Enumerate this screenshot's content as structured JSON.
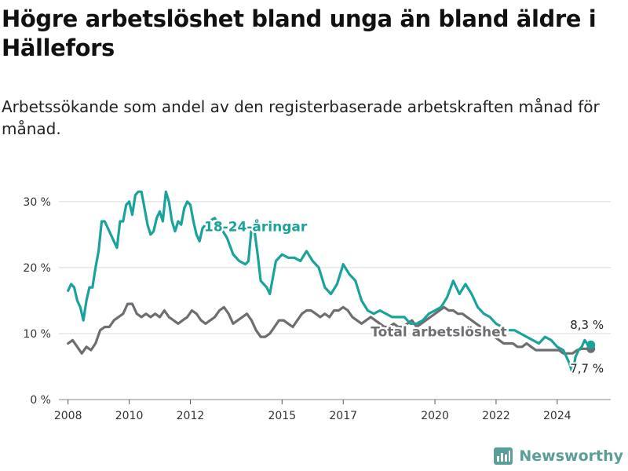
{
  "title": "Högre arbetslöshet bland unga än bland äldre i Hällefors",
  "subtitle": "Arbetssökande som andel av den registerbaserade arbetskraften månad för månad.",
  "brand": {
    "name": "Newsworthy",
    "color": "#5a9e98"
  },
  "chart_data": {
    "type": "line",
    "title": "Högre arbetslöshet bland unga än bland äldre i Hällefors",
    "subtitle": "Arbetssökande som andel av den registerbaserade arbetskraften månad för månad.",
    "xlabel": "",
    "ylabel": "",
    "xlim": [
      2007.7,
      2025.75
    ],
    "ylim": [
      0,
      32
    ],
    "x_ticks": [
      2008,
      2010,
      2012,
      2015,
      2017,
      2020,
      2022,
      2024
    ],
    "y_ticks": [
      0,
      10,
      20,
      30
    ],
    "y_tick_labels": [
      "0 %",
      "10 %",
      "20 %",
      "30 %"
    ],
    "grid": "horizontal",
    "legend": "inline labels",
    "series": [
      {
        "name": "18-24-åringar",
        "color": "#1aa39a",
        "x": [
          2008.0,
          2008.1,
          2008.2,
          2008.3,
          2008.4,
          2008.5,
          2008.6,
          2008.7,
          2008.8,
          2008.9,
          2009.0,
          2009.1,
          2009.2,
          2009.3,
          2009.4,
          2009.5,
          2009.6,
          2009.7,
          2009.8,
          2009.9,
          2010.0,
          2010.1,
          2010.2,
          2010.3,
          2010.4,
          2010.5,
          2010.6,
          2010.7,
          2010.8,
          2010.9,
          2011.0,
          2011.1,
          2011.2,
          2011.3,
          2011.4,
          2011.5,
          2011.6,
          2011.7,
          2011.8,
          2011.9,
          2012.0,
          2012.1,
          2012.2,
          2012.3,
          2012.4,
          2012.6,
          2012.8,
          2013.0,
          2013.2,
          2013.4,
          2013.6,
          2013.8,
          2013.9,
          2014.0,
          2014.1,
          2014.2,
          2014.3,
          2014.4,
          2014.5,
          2014.6,
          2014.8,
          2015.0,
          2015.2,
          2015.4,
          2015.6,
          2015.8,
          2016.0,
          2016.2,
          2016.4,
          2016.6,
          2016.8,
          2017.0,
          2017.2,
          2017.4,
          2017.6,
          2017.8,
          2018.0,
          2018.2,
          2018.4,
          2018.6,
          2018.8,
          2019.0,
          2019.2,
          2019.4,
          2019.6,
          2019.8,
          2020.0,
          2020.2,
          2020.4,
          2020.6,
          2020.8,
          2021.0,
          2021.2,
          2021.4,
          2021.6,
          2021.8,
          2022.0,
          2022.2,
          2022.4,
          2022.6,
          2022.8,
          2023.0,
          2023.2,
          2023.4,
          2023.6,
          2023.8,
          2024.0,
          2024.2,
          2024.4,
          2024.5,
          2024.6,
          2024.7,
          2024.8,
          2024.9,
          2025.0,
          2025.1
        ],
        "y": [
          16.5,
          17.5,
          17.0,
          15.0,
          14.0,
          12.0,
          15.0,
          17.0,
          17.0,
          20.0,
          22.5,
          27.0,
          27.0,
          26.0,
          25.0,
          24.0,
          23.0,
          27.0,
          27.0,
          29.5,
          30.0,
          28.0,
          31.0,
          31.5,
          31.5,
          29.0,
          26.5,
          25.0,
          25.5,
          27.5,
          28.5,
          27.0,
          31.5,
          30.0,
          27.0,
          25.5,
          27.0,
          26.5,
          29.0,
          30.0,
          29.5,
          27.0,
          25.0,
          24.0,
          26.0,
          27.0,
          27.5,
          26.0,
          24.5,
          22.0,
          21.0,
          20.5,
          21.0,
          26.0,
          25.5,
          22.0,
          18.0,
          17.5,
          17.0,
          16.0,
          21.0,
          22.0,
          21.5,
          21.5,
          21.0,
          22.5,
          21.0,
          20.0,
          17.0,
          16.0,
          17.5,
          20.5,
          19.0,
          18.0,
          15.0,
          13.5,
          13.0,
          13.5,
          13.0,
          12.5,
          12.5,
          12.5,
          11.5,
          11.5,
          12.0,
          13.0,
          13.5,
          14.0,
          15.5,
          18.0,
          16.0,
          17.5,
          16.0,
          14.0,
          13.0,
          12.5,
          11.5,
          11.0,
          10.5,
          10.5,
          10.0,
          9.5,
          9.0,
          8.5,
          9.5,
          9.0,
          8.0,
          7.5,
          5.5,
          4.0,
          6.5,
          7.5,
          8.0,
          9.0,
          8.3,
          8.3
        ]
      },
      {
        "name": "Total arbetslöshet",
        "color": "#6e6e72",
        "x": [
          2008.0,
          2008.15,
          2008.3,
          2008.45,
          2008.6,
          2008.75,
          2008.9,
          2009.05,
          2009.2,
          2009.35,
          2009.5,
          2009.65,
          2009.8,
          2009.95,
          2010.1,
          2010.25,
          2010.4,
          2010.55,
          2010.7,
          2010.85,
          2011.0,
          2011.15,
          2011.3,
          2011.45,
          2011.6,
          2011.75,
          2011.9,
          2012.05,
          2012.2,
          2012.35,
          2012.5,
          2012.65,
          2012.8,
          2012.95,
          2013.1,
          2013.25,
          2013.4,
          2013.55,
          2013.7,
          2013.85,
          2014.0,
          2014.15,
          2014.3,
          2014.45,
          2014.6,
          2014.75,
          2014.9,
          2015.05,
          2015.2,
          2015.35,
          2015.5,
          2015.65,
          2015.8,
          2015.95,
          2016.1,
          2016.25,
          2016.4,
          2016.55,
          2016.7,
          2016.85,
          2017.0,
          2017.15,
          2017.3,
          2017.45,
          2017.6,
          2017.75,
          2017.9,
          2018.05,
          2018.2,
          2018.35,
          2018.5,
          2018.65,
          2018.8,
          2018.95,
          2019.1,
          2019.25,
          2019.4,
          2019.55,
          2019.7,
          2019.85,
          2020.0,
          2020.15,
          2020.3,
          2020.45,
          2020.6,
          2020.75,
          2020.9,
          2021.05,
          2021.2,
          2021.35,
          2021.5,
          2021.65,
          2021.8,
          2021.95,
          2022.1,
          2022.25,
          2022.4,
          2022.55,
          2022.7,
          2022.85,
          2023.0,
          2023.15,
          2023.3,
          2023.45,
          2023.6,
          2023.75,
          2023.9,
          2024.05,
          2024.2,
          2024.35,
          2024.5,
          2024.65,
          2024.8,
          2024.95,
          2025.1
        ],
        "y": [
          8.5,
          9.0,
          8.0,
          7.0,
          8.0,
          7.5,
          8.5,
          10.5,
          11.0,
          11.0,
          12.0,
          12.5,
          13.0,
          14.5,
          14.5,
          13.0,
          12.5,
          13.0,
          12.5,
          13.0,
          12.5,
          13.5,
          12.5,
          12.0,
          11.5,
          12.0,
          12.5,
          13.5,
          13.0,
          12.0,
          11.5,
          12.0,
          12.5,
          13.5,
          14.0,
          13.0,
          11.5,
          12.0,
          12.5,
          13.0,
          12.0,
          10.5,
          9.5,
          9.5,
          10.0,
          11.0,
          12.0,
          12.0,
          11.5,
          11.0,
          12.0,
          13.0,
          13.5,
          13.5,
          13.0,
          12.5,
          13.0,
          12.5,
          13.5,
          13.5,
          14.0,
          13.5,
          12.5,
          12.0,
          11.5,
          12.0,
          12.5,
          12.0,
          11.5,
          11.0,
          11.0,
          11.5,
          11.0,
          11.0,
          11.5,
          12.0,
          11.0,
          11.5,
          12.0,
          12.5,
          13.0,
          13.5,
          14.0,
          13.5,
          13.5,
          13.0,
          13.0,
          12.5,
          12.0,
          11.5,
          11.0,
          10.5,
          10.0,
          9.5,
          9.0,
          8.5,
          8.5,
          8.5,
          8.0,
          8.0,
          8.5,
          8.0,
          7.5,
          7.5,
          7.5,
          7.5,
          7.5,
          7.5,
          7.0,
          7.0,
          7.0,
          7.5,
          7.7,
          7.7,
          7.7
        ]
      }
    ],
    "annotations": [
      {
        "text": "8,3 %",
        "x": 2025.1,
        "y": 8.3,
        "series": "18-24-åringar"
      },
      {
        "text": "7,7 %",
        "x": 2025.1,
        "y": 7.7,
        "series": "Total arbetslöshet"
      }
    ],
    "series_labels": [
      {
        "text": "18-24-åringar",
        "x": 2012.45,
        "y": 25.5
      },
      {
        "text": "Total arbetslöshet",
        "x": 2017.9,
        "y": 9.6
      }
    ]
  }
}
